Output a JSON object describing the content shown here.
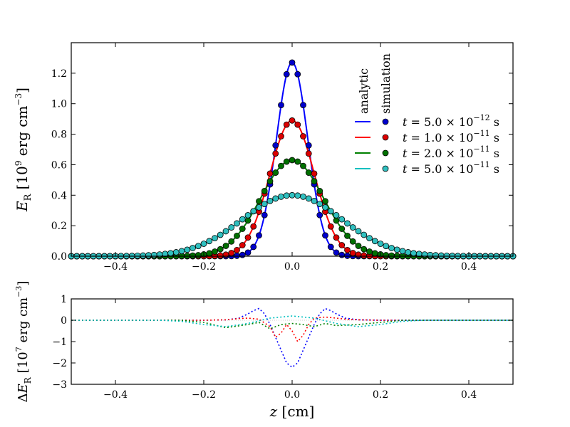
{
  "chart_data": [
    {
      "type": "line",
      "panel": "main",
      "xlim": [
        -0.5,
        0.5
      ],
      "ylim": [
        0,
        1.4
      ],
      "xticks": [
        -0.4,
        -0.2,
        0.0,
        0.2,
        0.4
      ],
      "xtick_labels": [
        "−0.4",
        "−0.2",
        "0.0",
        "0.2",
        "0.4"
      ],
      "yticks": [
        0.0,
        0.2,
        0.4,
        0.6,
        0.8,
        1.0,
        1.2
      ],
      "ytick_labels": [
        "0.0",
        "0.2",
        "0.4",
        "0.6",
        "0.8",
        "1.0",
        "1.2"
      ],
      "ylabel": {
        "symbol": "E",
        "sub": "R",
        "unit_prefix": "[10",
        "exp": "9",
        "unit": " erg cm",
        "unit_exp": "−3",
        "close": "]"
      },
      "legend": {
        "placement": "upper-right",
        "col_headers": [
          "analytic",
          "simulation"
        ],
        "entries": [
          {
            "label": "t = 5.0 × 10",
            "exp": "−12",
            "unit": " s"
          },
          {
            "label": "t = 1.0 × 10",
            "exp": "−11",
            "unit": " s"
          },
          {
            "label": "t = 2.0 × 10",
            "exp": "−11",
            "unit": " s"
          },
          {
            "label": "t = 5.0 × 10",
            "exp": "−11",
            "unit": " s"
          }
        ]
      },
      "sample_spacing": 0.0125,
      "series": [
        {
          "name": "t = 5.0e-12 s",
          "color": "#0000ff",
          "marker_color": "#0000cc",
          "amplitude": 1.27,
          "sigma": 0.0355
        },
        {
          "name": "t = 1.0e-11 s",
          "color": "#ff0000",
          "marker_color": "#dd0000",
          "amplitude": 0.89,
          "sigma": 0.0502
        },
        {
          "name": "t = 2.0e-11 s",
          "color": "#008000",
          "marker_color": "#007000",
          "amplitude": 0.63,
          "sigma": 0.071
        },
        {
          "name": "t = 5.0e-11 s",
          "color": "#00bfbf",
          "marker_color": "#30c0c0",
          "amplitude": 0.4,
          "sigma": 0.1122
        }
      ]
    },
    {
      "type": "line",
      "panel": "residual",
      "xlim": [
        -0.5,
        0.5
      ],
      "ylim": [
        -3,
        1
      ],
      "xticks": [
        -0.4,
        -0.2,
        0.0,
        0.2,
        0.4
      ],
      "xtick_labels": [
        "−0.4",
        "−0.2",
        "0.0",
        "0.2",
        "0.4"
      ],
      "yticks": [
        -3,
        -2,
        -1,
        0,
        1
      ],
      "ytick_labels": [
        "−3",
        "−2",
        "−1",
        "0",
        "1"
      ],
      "xlabel": {
        "symbol": "z",
        "unit": " [cm]"
      },
      "ylabel": {
        "prefix": "Δ",
        "symbol": "E",
        "sub": "R",
        "unit_prefix": "[10",
        "exp": "7",
        "unit": " erg cm",
        "unit_exp": "−3",
        "close": "]"
      },
      "series": [
        {
          "name": "t = 5.0e-12 s",
          "color": "#0000ff",
          "x": [
            -0.5,
            -0.3,
            -0.2,
            -0.15,
            -0.12,
            -0.1,
            -0.0875,
            -0.075,
            -0.0625,
            -0.05,
            -0.0375,
            -0.025,
            -0.0125,
            0,
            0.0125,
            0.025,
            0.0375,
            0.05,
            0.0625,
            0.075,
            0.0875,
            0.1,
            0.12,
            0.15,
            0.2,
            0.5
          ],
          "y": [
            0,
            0,
            0,
            0.02,
            0.1,
            0.3,
            0.45,
            0.55,
            0.3,
            -0.2,
            -0.8,
            -1.4,
            -2.0,
            -2.2,
            -2.0,
            -1.4,
            -0.8,
            -0.2,
            0.3,
            0.55,
            0.45,
            0.3,
            0.1,
            0.02,
            0,
            0
          ]
        },
        {
          "name": "t = 1.0e-11 s",
          "color": "#ff0000",
          "x": [
            -0.5,
            -0.2,
            -0.15,
            -0.12,
            -0.1,
            -0.075,
            -0.05,
            -0.0375,
            -0.025,
            -0.0125,
            0,
            0.0125,
            0.025,
            0.0375,
            0.05,
            0.075,
            0.1,
            0.12,
            0.15,
            0.2,
            0.5
          ],
          "y": [
            0,
            0,
            0.02,
            0.08,
            0.1,
            0.05,
            -0.3,
            -0.8,
            -0.6,
            -0.2,
            -0.5,
            -1.0,
            -0.7,
            -0.2,
            0.1,
            0.15,
            0.1,
            0.05,
            0.02,
            0,
            0
          ]
        },
        {
          "name": "t = 2.0e-11 s",
          "color": "#008000",
          "x": [
            -0.5,
            -0.25,
            -0.2,
            -0.15,
            -0.1,
            -0.075,
            -0.05,
            -0.025,
            0,
            0.025,
            0.05,
            0.075,
            0.1,
            0.15,
            0.2,
            0.25,
            0.5
          ],
          "y": [
            0,
            0,
            -0.1,
            -0.35,
            -0.2,
            -0.1,
            -0.4,
            -0.2,
            -0.15,
            -0.2,
            -0.3,
            -0.15,
            -0.25,
            -0.2,
            -0.1,
            0,
            0
          ]
        },
        {
          "name": "t = 5.0e-11 s",
          "color": "#00bfbf",
          "x": [
            -0.5,
            -0.3,
            -0.25,
            -0.2,
            -0.15,
            -0.1,
            -0.05,
            0,
            0.05,
            0.1,
            0.15,
            0.2,
            0.25,
            0.3,
            0.5
          ],
          "y": [
            0,
            0,
            -0.05,
            -0.2,
            -0.3,
            -0.15,
            0.1,
            0.2,
            0.1,
            -0.15,
            -0.3,
            -0.2,
            -0.05,
            0,
            0
          ]
        }
      ]
    }
  ]
}
